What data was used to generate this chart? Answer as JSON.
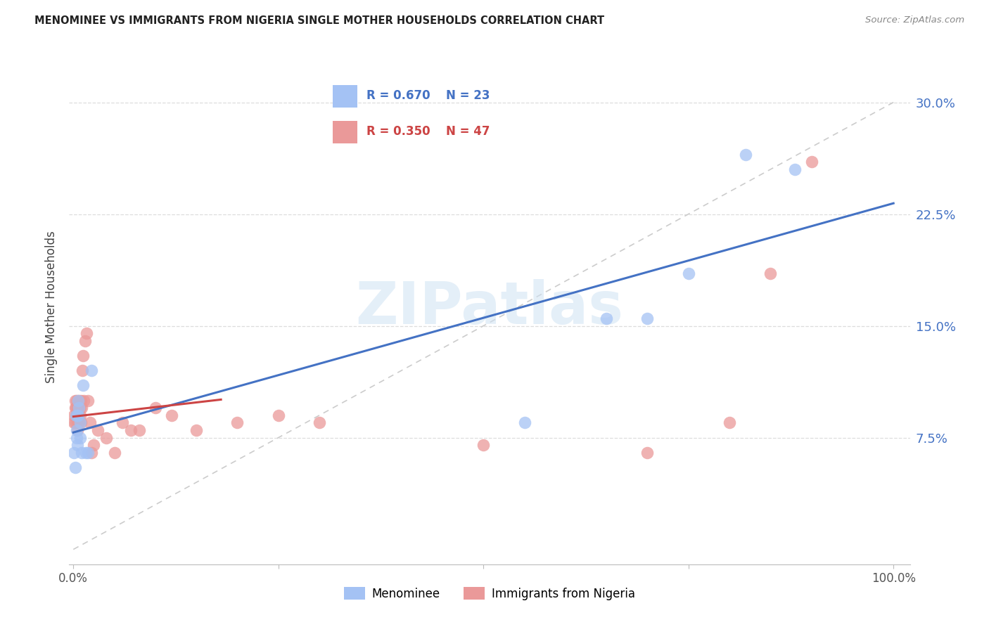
{
  "title": "MENOMINEE VS IMMIGRANTS FROM NIGERIA SINGLE MOTHER HOUSEHOLDS CORRELATION CHART",
  "source": "Source: ZipAtlas.com",
  "ylabel": "Single Mother Households",
  "ytick_vals": [
    0.0,
    0.075,
    0.15,
    0.225,
    0.3
  ],
  "ytick_labels": [
    "",
    "7.5%",
    "15.0%",
    "22.5%",
    "30.0%"
  ],
  "legend_r1": "R = 0.670",
  "legend_n1": "N = 23",
  "legend_r2": "R = 0.350",
  "legend_n2": "N = 47",
  "legend_label1": "Menominee",
  "legend_label2": "Immigrants from Nigeria",
  "color_blue": "#a4c2f4",
  "color_pink": "#ea9999",
  "color_blue_line": "#4472c4",
  "color_pink_line": "#cc4444",
  "color_diag": "#cccccc",
  "watermark_text": "ZIPatlas",
  "watermark_color": "#cfe2f3",
  "xlim": [
    -0.005,
    1.02
  ],
  "ylim": [
    -0.01,
    0.335
  ],
  "menominee_x": [
    0.001,
    0.002,
    0.003,
    0.004,
    0.004,
    0.005,
    0.005,
    0.006,
    0.006,
    0.007,
    0.008,
    0.008,
    0.01,
    0.012,
    0.015,
    0.018,
    0.022,
    0.55,
    0.65,
    0.7,
    0.75,
    0.82,
    0.88
  ],
  "menominee_y": [
    0.065,
    0.055,
    0.09,
    0.075,
    0.08,
    0.09,
    0.07,
    0.1,
    0.09,
    0.095,
    0.085,
    0.075,
    0.065,
    0.11,
    0.065,
    0.065,
    0.12,
    0.085,
    0.155,
    0.155,
    0.185,
    0.265,
    0.255
  ],
  "nigeria_x": [
    0.001,
    0.001,
    0.002,
    0.002,
    0.002,
    0.003,
    0.003,
    0.004,
    0.004,
    0.005,
    0.005,
    0.005,
    0.006,
    0.006,
    0.007,
    0.007,
    0.008,
    0.008,
    0.009,
    0.009,
    0.01,
    0.011,
    0.012,
    0.013,
    0.014,
    0.016,
    0.018,
    0.02,
    0.022,
    0.025,
    0.03,
    0.04,
    0.05,
    0.06,
    0.07,
    0.08,
    0.1,
    0.12,
    0.15,
    0.2,
    0.25,
    0.3,
    0.5,
    0.7,
    0.8,
    0.85,
    0.9
  ],
  "nigeria_y": [
    0.09,
    0.085,
    0.1,
    0.095,
    0.085,
    0.09,
    0.095,
    0.1,
    0.09,
    0.095,
    0.08,
    0.085,
    0.095,
    0.09,
    0.1,
    0.085,
    0.095,
    0.09,
    0.1,
    0.085,
    0.095,
    0.12,
    0.13,
    0.1,
    0.14,
    0.145,
    0.1,
    0.085,
    0.065,
    0.07,
    0.08,
    0.075,
    0.065,
    0.085,
    0.08,
    0.08,
    0.095,
    0.09,
    0.08,
    0.085,
    0.09,
    0.085,
    0.07,
    0.065,
    0.085,
    0.185,
    0.26
  ]
}
